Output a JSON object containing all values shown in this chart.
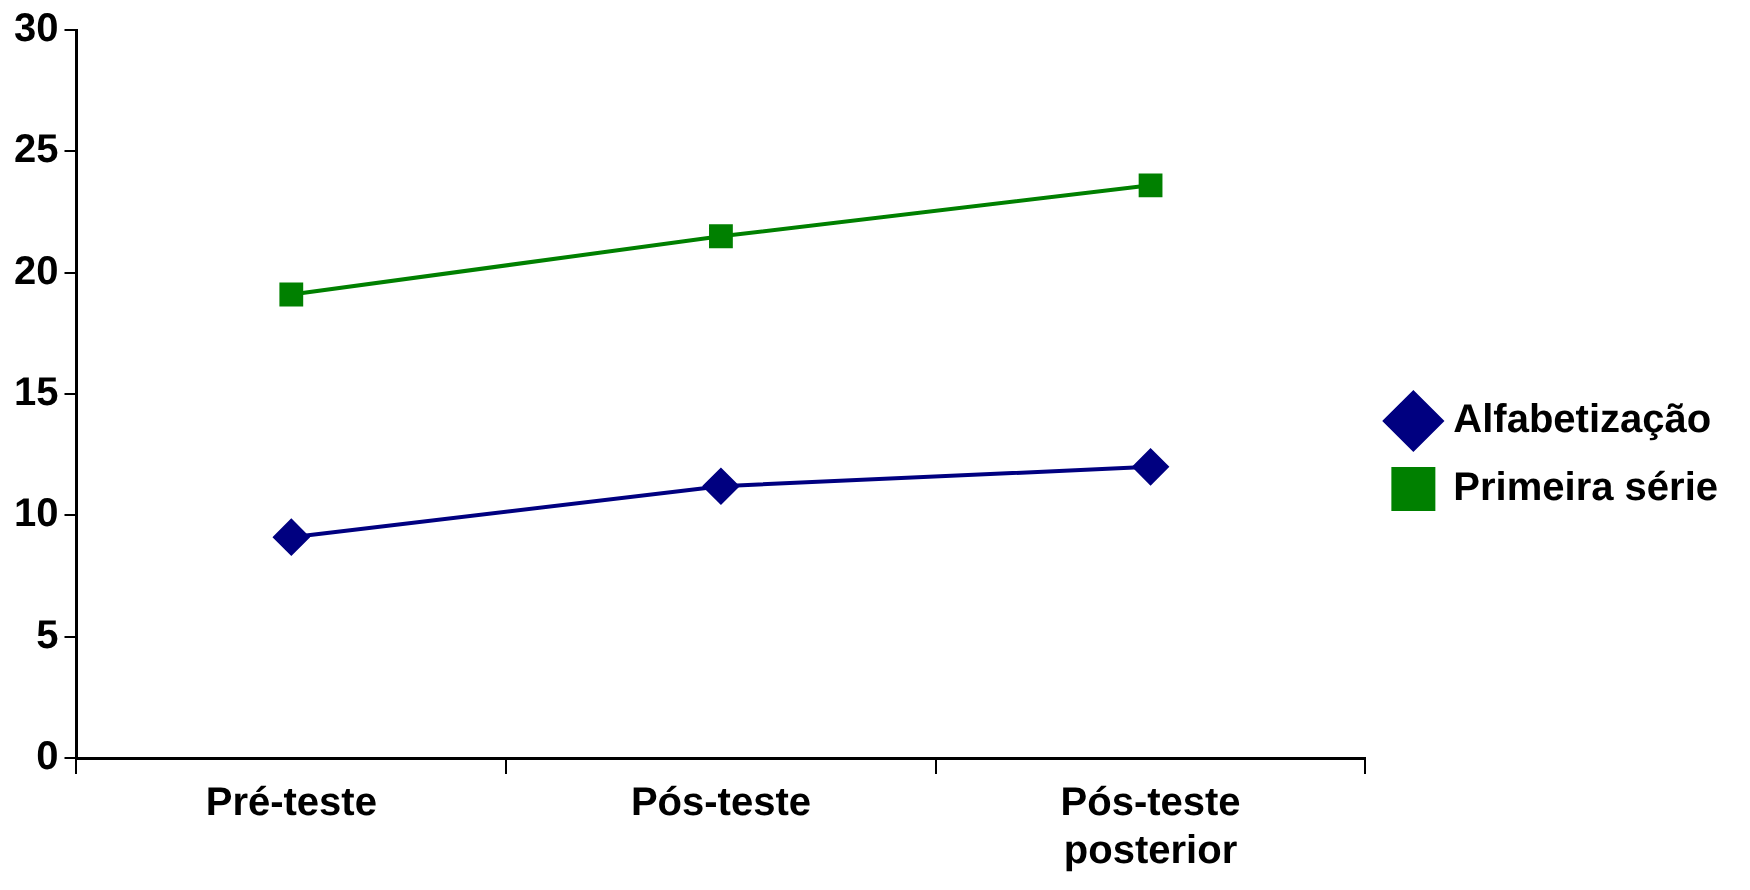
{
  "chart_data": {
    "type": "line",
    "categories": [
      "Pré-teste",
      "Pós-teste",
      "Pós-teste posterior"
    ],
    "series": [
      {
        "name": "Alfabetização",
        "color": "#000080",
        "marker": "diamond",
        "values": [
          9.1,
          11.2,
          12.0
        ]
      },
      {
        "name": "Primeira série",
        "color": "#008000",
        "marker": "square",
        "values": [
          19.1,
          21.5,
          23.6
        ]
      }
    ],
    "ylim": [
      0,
      30
    ],
    "yticks": [
      0,
      5,
      10,
      15,
      20,
      25,
      30
    ],
    "grid": false,
    "legend": "right",
    "line_style": "solid"
  }
}
